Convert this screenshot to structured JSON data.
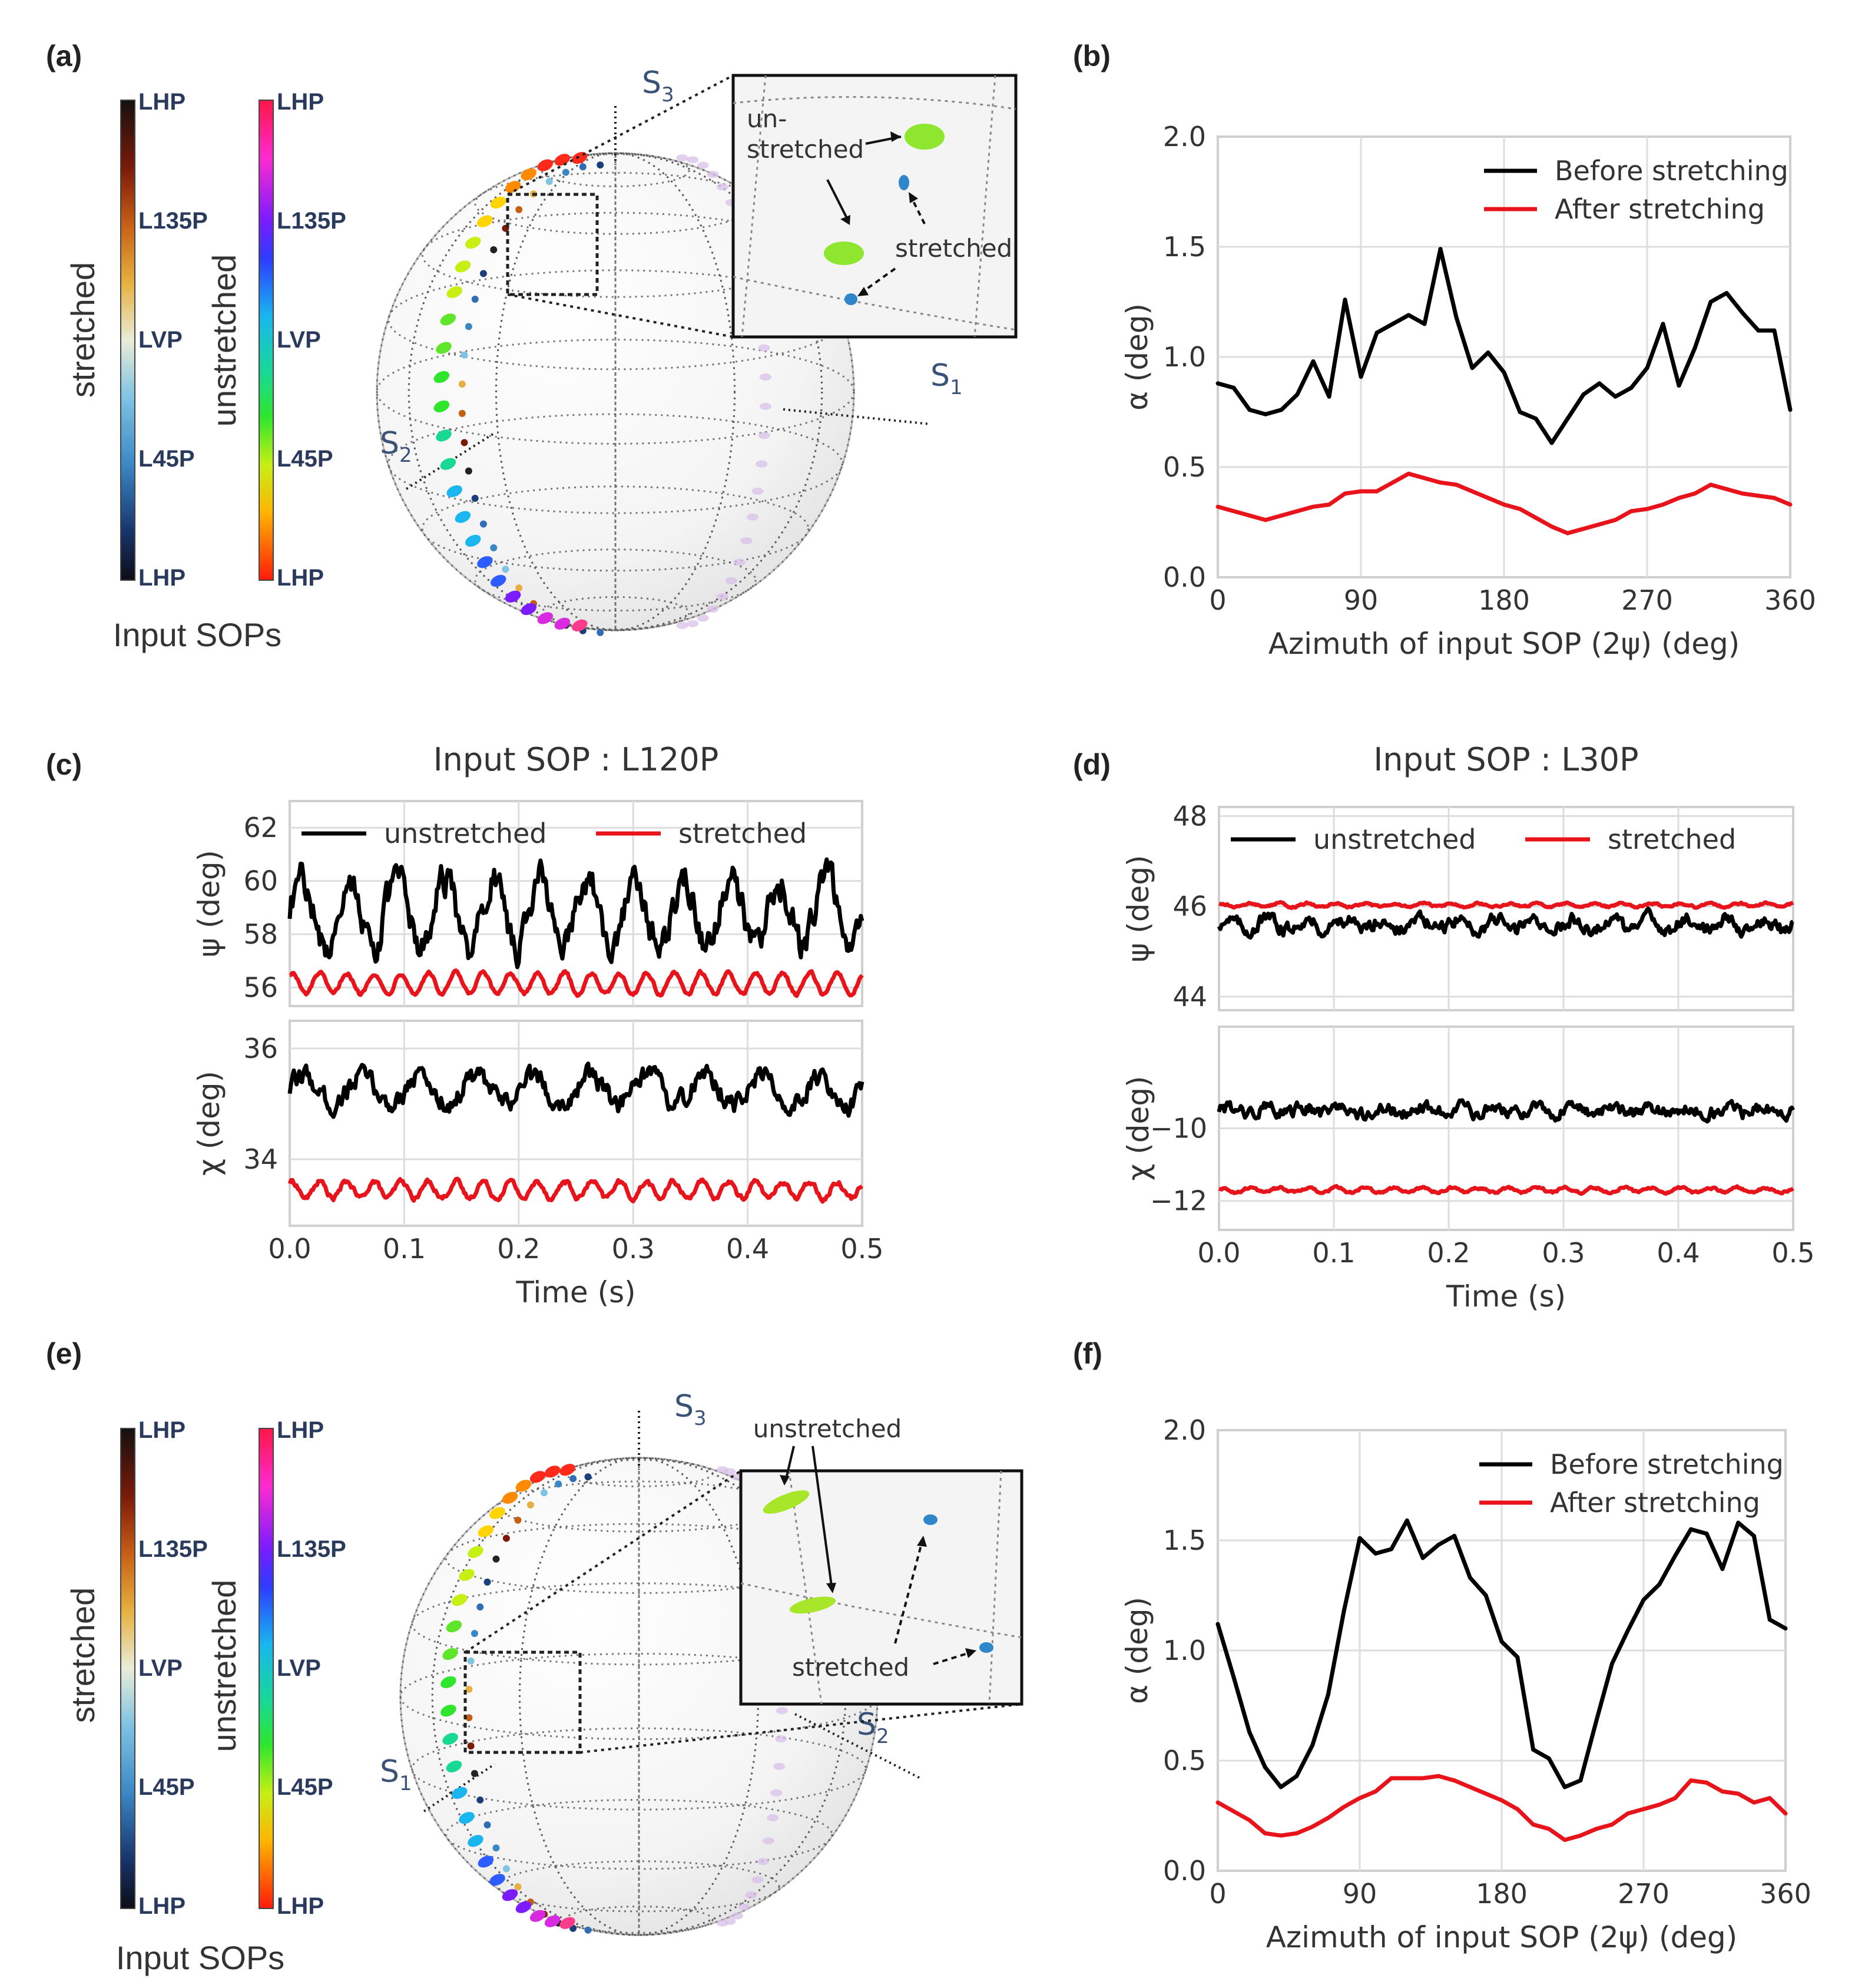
{
  "panel_labels": [
    "(a)",
    "(b)",
    "(c)",
    "(d)",
    "(e)",
    "(f)"
  ],
  "colors": {
    "before": "#000000",
    "after": "#e8141b",
    "unstretched_dot": "#8ee62e",
    "stretched_dot": "#2f86c9"
  },
  "sphere_panels": [
    {
      "panel": "(a)",
      "colorbars": {
        "stretched": {
          "title": "stretched",
          "labels": [
            "LHP",
            "L135P",
            "LVP",
            "L45P",
            "LHP"
          ]
        },
        "unstretched": {
          "title": "unstretched",
          "labels": [
            "LHP",
            "L135P",
            "LVP",
            "L45P",
            "LHP"
          ]
        },
        "caption": "Input SOPs"
      },
      "axes": {
        "s1": "S",
        "s1_sub": "1",
        "s2": "S",
        "s2_sub": "2",
        "s3": "S",
        "s3_sub": "3"
      },
      "inset": {
        "unstretched_label_line1": "un-",
        "unstretched_label_line2": "stretched",
        "stretched_label": "stretched"
      }
    },
    {
      "panel": "(e)",
      "colorbars": {
        "stretched": {
          "title": "stretched",
          "labels": [
            "LHP",
            "L135P",
            "LVP",
            "L45P",
            "LHP"
          ]
        },
        "unstretched": {
          "title": "unstretched",
          "labels": [
            "LHP",
            "L135P",
            "LVP",
            "L45P",
            "LHP"
          ]
        },
        "caption": "Input SOPs"
      },
      "axes": {
        "s1": "S",
        "s1_sub": "1",
        "s2": "S",
        "s2_sub": "2",
        "s3": "S",
        "s3_sub": "3"
      },
      "inset": {
        "unstretched_label": "unstretched",
        "stretched_label": "stretched"
      }
    }
  ],
  "chart_data": [
    {
      "id": "b",
      "type": "line",
      "xlabel": "Azimuth of input SOP (2ψ) (deg)",
      "ylabel": "α (deg)",
      "xlim": [
        0,
        360
      ],
      "ylim": [
        0,
        2.0
      ],
      "xticks": [
        0,
        90,
        180,
        270,
        360
      ],
      "yticks": [
        0.0,
        0.5,
        1.0,
        1.5,
        2.0
      ],
      "ytick_labels": [
        "0.0",
        "0.5",
        "1.0",
        "1.5",
        "2.0"
      ],
      "legend": "top-right",
      "series": [
        {
          "name": "Before stretching",
          "color": "#000000",
          "x": [
            0,
            10,
            20,
            30,
            40,
            50,
            60,
            70,
            80,
            90,
            100,
            110,
            120,
            130,
            140,
            150,
            160,
            170,
            180,
            190,
            200,
            210,
            220,
            230,
            240,
            250,
            260,
            270,
            280,
            290,
            300,
            310,
            320,
            330,
            340,
            350,
            360
          ],
          "y": [
            0.88,
            0.86,
            0.76,
            0.74,
            0.76,
            0.83,
            0.98,
            0.82,
            1.26,
            0.91,
            1.11,
            1.15,
            1.19,
            1.15,
            1.49,
            1.18,
            0.95,
            1.02,
            0.93,
            0.75,
            0.72,
            0.61,
            0.72,
            0.83,
            0.88,
            0.82,
            0.86,
            0.95,
            1.15,
            0.87,
            1.04,
            1.25,
            1.29,
            1.2,
            1.12,
            1.12,
            0.76
          ]
        },
        {
          "name": "After stretching",
          "color": "#e8141b",
          "x": [
            0,
            10,
            20,
            30,
            40,
            50,
            60,
            70,
            80,
            90,
            100,
            110,
            120,
            130,
            140,
            150,
            160,
            170,
            180,
            190,
            200,
            210,
            220,
            230,
            240,
            250,
            260,
            270,
            280,
            290,
            300,
            310,
            320,
            330,
            340,
            350,
            360
          ],
          "y": [
            0.32,
            0.3,
            0.28,
            0.26,
            0.28,
            0.3,
            0.32,
            0.33,
            0.38,
            0.39,
            0.39,
            0.43,
            0.47,
            0.45,
            0.43,
            0.42,
            0.39,
            0.36,
            0.33,
            0.31,
            0.27,
            0.23,
            0.2,
            0.22,
            0.24,
            0.26,
            0.3,
            0.31,
            0.33,
            0.36,
            0.38,
            0.42,
            0.4,
            0.38,
            0.37,
            0.36,
            0.33
          ]
        }
      ]
    },
    {
      "id": "c",
      "type": "line",
      "title": "Input SOP : L120P",
      "xlabel": "Time (s)",
      "xlim": [
        0,
        0.5
      ],
      "xticks": [
        0.0,
        0.1,
        0.2,
        0.3,
        0.4,
        0.5
      ],
      "xtick_labels": [
        "0.0",
        "0.1",
        "0.2",
        "0.3",
        "0.4",
        "0.5"
      ],
      "legend_entries": [
        "unstretched",
        "stretched"
      ],
      "legend": "top",
      "subplots": [
        {
          "ylabel": "ψ (deg)",
          "ylim": [
            55.3,
            63.0
          ],
          "yticks": [
            56,
            58,
            60,
            62
          ],
          "ytick_labels": [
            "56",
            "58",
            "60",
            "62"
          ],
          "series": [
            {
              "name": "unstretched",
              "mean": 58.8,
              "slow_amp": 1.3,
              "slow_freq_hz": 24,
              "noise": 0.5
            },
            {
              "name": "stretched",
              "mean": 56.15,
              "slow_amp": 0.4,
              "slow_freq_hz": 42,
              "noise": 0.06
            }
          ]
        },
        {
          "ylabel": "χ (deg)",
          "ylim": [
            32.8,
            36.5
          ],
          "yticks": [
            34,
            36
          ],
          "ytick_labels": [
            "34",
            "36"
          ],
          "series": [
            {
              "name": "unstretched",
              "mean": 35.25,
              "slow_amp": 0.25,
              "slow_freq_hz": 20,
              "noise": 0.15
            },
            {
              "name": "stretched",
              "mean": 33.45,
              "slow_amp": 0.15,
              "slow_freq_hz": 42,
              "noise": 0.04
            }
          ]
        }
      ]
    },
    {
      "id": "d",
      "type": "line",
      "title": "Input SOP : L30P",
      "xlabel": "Time (s)",
      "xlim": [
        0,
        0.5
      ],
      "xticks": [
        0.0,
        0.1,
        0.2,
        0.3,
        0.4,
        0.5
      ],
      "xtick_labels": [
        "0.0",
        "0.1",
        "0.2",
        "0.3",
        "0.4",
        "0.5"
      ],
      "legend_entries": [
        "unstretched",
        "stretched"
      ],
      "legend": "top",
      "subplots": [
        {
          "ylabel": "ψ (deg)",
          "ylim": [
            43.7,
            48.2
          ],
          "yticks": [
            44,
            46,
            48
          ],
          "ytick_labels": [
            "44",
            "46",
            "48"
          ],
          "series": [
            {
              "name": "unstretched",
              "mean": 45.6,
              "slow_amp": 0.12,
              "slow_freq_hz": 30,
              "noise": 0.12
            },
            {
              "name": "stretched",
              "mean": 46.03,
              "slow_amp": 0.04,
              "slow_freq_hz": 40,
              "noise": 0.02
            }
          ]
        },
        {
          "ylabel": "χ (deg)",
          "ylim": [
            -12.8,
            -7.2
          ],
          "yticks": [
            -12,
            -10
          ],
          "ytick_labels": [
            "−12",
            "−10"
          ],
          "series": [
            {
              "name": "unstretched",
              "mean": -9.5,
              "slow_amp": 0.08,
              "slow_freq_hz": 30,
              "noise": 0.14
            },
            {
              "name": "stretched",
              "mean": -11.7,
              "slow_amp": 0.06,
              "slow_freq_hz": 40,
              "noise": 0.03
            }
          ]
        }
      ]
    },
    {
      "id": "f",
      "type": "line",
      "xlabel": "Azimuth of input SOP (2ψ) (deg)",
      "ylabel": "α (deg)",
      "xlim": [
        0,
        360
      ],
      "ylim": [
        0,
        2.0
      ],
      "xticks": [
        0,
        90,
        180,
        270,
        360
      ],
      "yticks": [
        0.0,
        0.5,
        1.0,
        1.5,
        2.0
      ],
      "ytick_labels": [
        "0.0",
        "0.5",
        "1.0",
        "1.5",
        "2.0"
      ],
      "legend": "top-right",
      "series": [
        {
          "name": "Before stretching",
          "color": "#000000",
          "x": [
            0,
            10,
            20,
            30,
            40,
            50,
            60,
            70,
            80,
            90,
            100,
            110,
            120,
            130,
            140,
            150,
            160,
            170,
            180,
            190,
            200,
            210,
            220,
            230,
            240,
            250,
            260,
            270,
            280,
            290,
            300,
            310,
            320,
            330,
            340,
            350,
            360
          ],
          "y": [
            1.12,
            0.88,
            0.63,
            0.47,
            0.38,
            0.43,
            0.57,
            0.8,
            1.18,
            1.51,
            1.44,
            1.46,
            1.59,
            1.42,
            1.48,
            1.52,
            1.33,
            1.25,
            1.04,
            0.97,
            0.55,
            0.51,
            0.38,
            0.41,
            0.68,
            0.94,
            1.09,
            1.23,
            1.3,
            1.43,
            1.55,
            1.53,
            1.37,
            1.58,
            1.52,
            1.14,
            1.1
          ]
        },
        {
          "name": "After stretching",
          "color": "#e8141b",
          "x": [
            0,
            10,
            20,
            30,
            40,
            50,
            60,
            70,
            80,
            90,
            100,
            110,
            120,
            130,
            140,
            150,
            160,
            170,
            180,
            190,
            200,
            210,
            220,
            230,
            240,
            250,
            260,
            270,
            280,
            290,
            300,
            310,
            320,
            330,
            340,
            350,
            360
          ],
          "y": [
            0.31,
            0.27,
            0.23,
            0.17,
            0.16,
            0.17,
            0.2,
            0.24,
            0.29,
            0.33,
            0.36,
            0.42,
            0.42,
            0.42,
            0.43,
            0.41,
            0.38,
            0.35,
            0.32,
            0.28,
            0.21,
            0.19,
            0.14,
            0.16,
            0.19,
            0.21,
            0.26,
            0.28,
            0.3,
            0.33,
            0.41,
            0.4,
            0.36,
            0.35,
            0.31,
            0.33,
            0.26
          ]
        }
      ]
    }
  ]
}
